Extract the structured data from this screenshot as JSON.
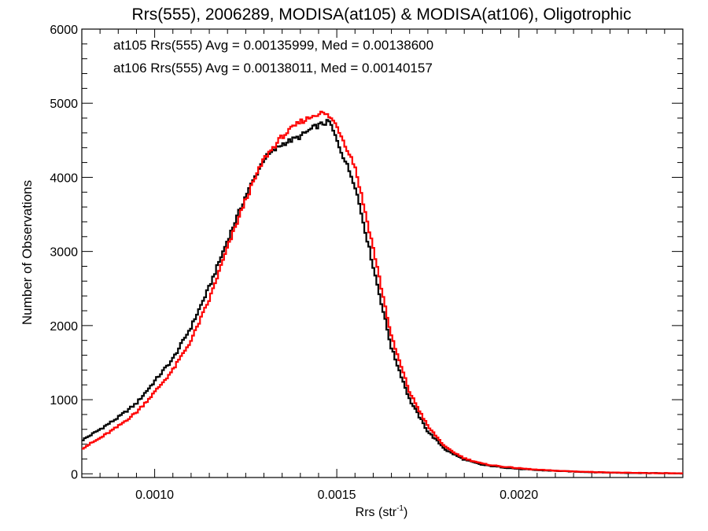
{
  "chart_data": {
    "type": "line",
    "title": "Rrs(555), 2006289, MODISA(at105) & MODISA(at106), Oligotrophic",
    "xlabel_main": "Rrs (str",
    "xlabel_sup": "-1",
    "xlabel_close": ")",
    "ylabel": "Number of Observations",
    "xlim": [
      0.0008,
      0.00245
    ],
    "ylim": [
      -50,
      6000
    ],
    "step_style": "histogram",
    "x_ticks": [
      0.001,
      0.0015,
      0.002
    ],
    "x_tick_labels": [
      "0.0010",
      "0.0015",
      "0.0020"
    ],
    "x_minor_step": 5e-05,
    "y_ticks": [
      0,
      1000,
      2000,
      3000,
      4000,
      5000,
      6000
    ],
    "y_tick_labels": [
      "0",
      "1000",
      "2000",
      "3000",
      "4000",
      "5000",
      "6000"
    ],
    "y_minor_step": 200,
    "grid": false,
    "legend_position": "top-left",
    "colors": {
      "at105": "#000000",
      "at106": "#ff0000"
    },
    "annotations": [
      {
        "text": "at105 Rrs(555) Avg = 0.00135999, Med = 0.00138600",
        "color": "#000000"
      },
      {
        "text": "at106 Rrs(555) Avg = 0.00138011, Med = 0.00140157",
        "color": "#ff0000"
      }
    ],
    "series": [
      {
        "name": "at105",
        "color": "#000000",
        "x": [
          0.0008,
          0.00085,
          0.0009,
          0.00095,
          0.001,
          0.00105,
          0.0011,
          0.00115,
          0.0012,
          0.00125,
          0.0013,
          0.00135,
          0.0014,
          0.00142,
          0.00144,
          0.00146,
          0.00148,
          0.0015,
          0.00155,
          0.0016,
          0.00165,
          0.0017,
          0.00175,
          0.0018,
          0.00185,
          0.0019,
          0.00195,
          0.002,
          0.00205,
          0.0021,
          0.00215,
          0.0022,
          0.0023,
          0.00245
        ],
        "values": [
          450,
          600,
          760,
          950,
          1250,
          1550,
          1980,
          2520,
          3150,
          3750,
          4250,
          4450,
          4550,
          4620,
          4680,
          4720,
          4750,
          4500,
          3900,
          2800,
          1700,
          1000,
          570,
          320,
          190,
          120,
          90,
          65,
          50,
          40,
          30,
          22,
          12,
          5
        ]
      },
      {
        "name": "at106",
        "color": "#ff0000",
        "x": [
          0.0008,
          0.00085,
          0.0009,
          0.00095,
          0.001,
          0.00105,
          0.0011,
          0.00115,
          0.0012,
          0.00125,
          0.0013,
          0.00135,
          0.0014,
          0.00142,
          0.00144,
          0.00146,
          0.00148,
          0.0015,
          0.00155,
          0.0016,
          0.00165,
          0.0017,
          0.00175,
          0.0018,
          0.00185,
          0.0019,
          0.00195,
          0.002,
          0.00205,
          0.0021,
          0.00215,
          0.0022,
          0.0023,
          0.00245
        ],
        "values": [
          340,
          480,
          640,
          830,
          1100,
          1400,
          1800,
          2350,
          3050,
          3700,
          4250,
          4550,
          4750,
          4790,
          4850,
          4870,
          4820,
          4700,
          4150,
          3050,
          1850,
          1100,
          640,
          350,
          210,
          135,
          100,
          75,
          55,
          42,
          32,
          24,
          13,
          5
        ]
      }
    ]
  }
}
